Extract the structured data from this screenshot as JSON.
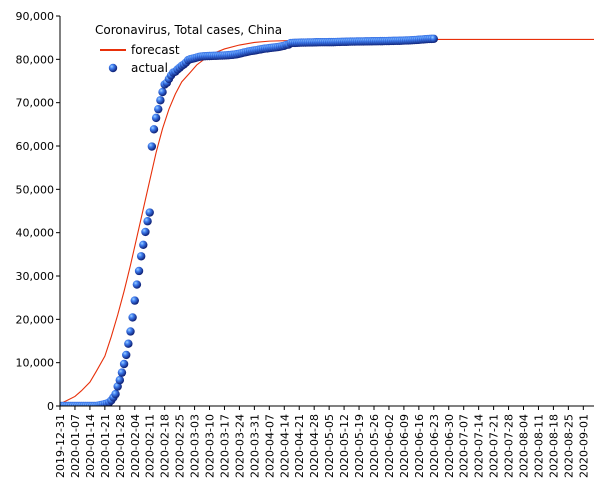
{
  "chart_data": {
    "type": "line",
    "title": "Coronavirus, Total cases, China",
    "xlabel": "",
    "ylabel": "",
    "ylim": [
      0,
      90000
    ],
    "xlim": [
      "2019-12-31",
      "2020-09-06"
    ],
    "grid": false,
    "legend_position": "top-left",
    "y_ticks": [
      "0",
      "10,000",
      "20,000",
      "30,000",
      "40,000",
      "50,000",
      "60,000",
      "70,000",
      "80,000",
      "90,000"
    ],
    "x_ticks": [
      "2019-12-31",
      "2020-01-07",
      "2020-01-14",
      "2020-01-21",
      "2020-01-28",
      "2020-02-04",
      "2020-02-11",
      "2020-02-18",
      "2020-02-25",
      "2020-03-03",
      "2020-03-10",
      "2020-03-17",
      "2020-03-24",
      "2020-03-31",
      "2020-04-07",
      "2020-04-14",
      "2020-04-21",
      "2020-04-28",
      "2020-05-05",
      "2020-05-12",
      "2020-05-19",
      "2020-05-26",
      "2020-06-02",
      "2020-06-09",
      "2020-06-16",
      "2020-06-23",
      "2020-06-30",
      "2020-07-07",
      "2020-07-14",
      "2020-07-21",
      "2020-07-28",
      "2020-08-04",
      "2020-08-11",
      "2020-08-18",
      "2020-08-25",
      "2020-09-01"
    ],
    "series": [
      {
        "name": "forecast",
        "color": "#e8300a",
        "style": "line",
        "points": [
          [
            "2019-12-31",
            500
          ],
          [
            "2020-01-03",
            1200
          ],
          [
            "2020-01-07",
            2200
          ],
          [
            "2020-01-10",
            3500
          ],
          [
            "2020-01-14",
            5500
          ],
          [
            "2020-01-17",
            8000
          ],
          [
            "2020-01-21",
            11500
          ],
          [
            "2020-01-24",
            16000
          ],
          [
            "2020-01-27",
            21000
          ],
          [
            "2020-01-30",
            26500
          ],
          [
            "2020-02-02",
            32500
          ],
          [
            "2020-02-05",
            39000
          ],
          [
            "2020-02-08",
            45500
          ],
          [
            "2020-02-11",
            52000
          ],
          [
            "2020-02-14",
            58500
          ],
          [
            "2020-02-17",
            64000
          ],
          [
            "2020-02-20",
            68500
          ],
          [
            "2020-02-23",
            72000
          ],
          [
            "2020-02-26",
            74800
          ],
          [
            "2020-03-01",
            77000
          ],
          [
            "2020-03-04",
            78700
          ],
          [
            "2020-03-08",
            80200
          ],
          [
            "2020-03-12",
            81400
          ],
          [
            "2020-03-17",
            82400
          ],
          [
            "2020-03-24",
            83300
          ],
          [
            "2020-03-31",
            83900
          ],
          [
            "2020-04-07",
            84200
          ],
          [
            "2020-04-21",
            84400
          ],
          [
            "2020-05-05",
            84500
          ],
          [
            "2020-06-02",
            84600
          ],
          [
            "2020-07-07",
            84600
          ],
          [
            "2020-08-11",
            84600
          ],
          [
            "2020-09-06",
            84600
          ]
        ]
      },
      {
        "name": "actual",
        "color": "#1a3fbf",
        "style": "markers",
        "points": [
          [
            "2019-12-31",
            0
          ],
          [
            "2020-01-01",
            0
          ],
          [
            "2020-01-02",
            0
          ],
          [
            "2020-01-03",
            0
          ],
          [
            "2020-01-04",
            0
          ],
          [
            "2020-01-05",
            0
          ],
          [
            "2020-01-06",
            0
          ],
          [
            "2020-01-07",
            0
          ],
          [
            "2020-01-08",
            0
          ],
          [
            "2020-01-09",
            0
          ],
          [
            "2020-01-10",
            0
          ],
          [
            "2020-01-11",
            0
          ],
          [
            "2020-01-12",
            0
          ],
          [
            "2020-01-13",
            0
          ],
          [
            "2020-01-14",
            0
          ],
          [
            "2020-01-15",
            0
          ],
          [
            "2020-01-16",
            0
          ],
          [
            "2020-01-17",
            0
          ],
          [
            "2020-01-18",
            100
          ],
          [
            "2020-01-19",
            200
          ],
          [
            "2020-01-20",
            300
          ],
          [
            "2020-01-21",
            440
          ],
          [
            "2020-01-22",
            570
          ],
          [
            "2020-01-23",
            830
          ],
          [
            "2020-01-24",
            1290
          ],
          [
            "2020-01-25",
            1980
          ],
          [
            "2020-01-26",
            2740
          ],
          [
            "2020-01-27",
            4500
          ],
          [
            "2020-01-28",
            5970
          ],
          [
            "2020-01-29",
            7700
          ],
          [
            "2020-01-30",
            9690
          ],
          [
            "2020-01-31",
            11790
          ],
          [
            "2020-02-01",
            14380
          ],
          [
            "2020-02-02",
            17200
          ],
          [
            "2020-02-03",
            20440
          ],
          [
            "2020-02-04",
            24320
          ],
          [
            "2020-02-05",
            28020
          ],
          [
            "2020-02-06",
            31160
          ],
          [
            "2020-02-07",
            34550
          ],
          [
            "2020-02-08",
            37200
          ],
          [
            "2020-02-09",
            40170
          ],
          [
            "2020-02-10",
            42640
          ],
          [
            "2020-02-11",
            44650
          ],
          [
            "2020-02-12",
            59880
          ],
          [
            "2020-02-13",
            63850
          ],
          [
            "2020-02-14",
            66490
          ],
          [
            "2020-02-15",
            68500
          ],
          [
            "2020-02-16",
            70550
          ],
          [
            "2020-02-17",
            72440
          ],
          [
            "2020-02-18",
            74190
          ],
          [
            "2020-02-19",
            74580
          ],
          [
            "2020-02-20",
            75470
          ],
          [
            "2020-02-21",
            76290
          ],
          [
            "2020-02-22",
            76940
          ],
          [
            "2020-02-23",
            77150
          ],
          [
            "2020-02-24",
            77660
          ],
          [
            "2020-02-25",
            78060
          ],
          [
            "2020-02-26",
            78500
          ],
          [
            "2020-02-27",
            78820
          ],
          [
            "2020-02-28",
            79250
          ],
          [
            "2020-02-29",
            79820
          ],
          [
            "2020-03-01",
            80030
          ],
          [
            "2020-03-02",
            80150
          ],
          [
            "2020-03-03",
            80270
          ],
          [
            "2020-03-04",
            80410
          ],
          [
            "2020-03-05",
            80550
          ],
          [
            "2020-03-06",
            80650
          ],
          [
            "2020-03-07",
            80700
          ],
          [
            "2020-03-08",
            80730
          ],
          [
            "2020-03-09",
            80750
          ],
          [
            "2020-03-10",
            80770
          ],
          [
            "2020-03-11",
            80790
          ],
          [
            "2020-03-12",
            80810
          ],
          [
            "2020-03-13",
            80820
          ],
          [
            "2020-03-14",
            80840
          ],
          [
            "2020-03-15",
            80860
          ],
          [
            "2020-03-16",
            80880
          ],
          [
            "2020-03-17",
            80900
          ],
          [
            "2020-03-18",
            80930
          ],
          [
            "2020-03-19",
            80970
          ],
          [
            "2020-03-20",
            81010
          ],
          [
            "2020-03-21",
            81060
          ],
          [
            "2020-03-22",
            81120
          ],
          [
            "2020-03-23",
            81200
          ],
          [
            "2020-03-24",
            81310
          ],
          [
            "2020-03-25",
            81420
          ],
          [
            "2020-03-26",
            81560
          ],
          [
            "2020-03-27",
            81650
          ],
          [
            "2020-03-28",
            81780
          ],
          [
            "2020-03-29",
            81890
          ],
          [
            "2020-03-30",
            81970
          ],
          [
            "2020-03-31",
            82040
          ],
          [
            "2020-04-01",
            82120
          ],
          [
            "2020-04-02",
            82220
          ],
          [
            "2020-04-03",
            82300
          ],
          [
            "2020-04-04",
            82410
          ],
          [
            "2020-04-05",
            82480
          ],
          [
            "2020-04-06",
            82520
          ],
          [
            "2020-04-07",
            82600
          ],
          [
            "2020-04-08",
            82660
          ],
          [
            "2020-04-09",
            82710
          ],
          [
            "2020-04-10",
            82770
          ],
          [
            "2020-04-11",
            82830
          ],
          [
            "2020-04-12",
            82930
          ],
          [
            "2020-04-13",
            83040
          ],
          [
            "2020-04-14",
            83130
          ],
          [
            "2020-04-15",
            83350
          ],
          [
            "2020-04-16",
            83400
          ],
          [
            "2020-04-17",
            83760
          ],
          [
            "2020-04-18",
            83780
          ],
          [
            "2020-04-19",
            83800
          ],
          [
            "2020-04-20",
            83820
          ],
          [
            "2020-04-21",
            83850
          ],
          [
            "2020-04-22",
            83860
          ],
          [
            "2020-04-23",
            83870
          ],
          [
            "2020-04-24",
            83880
          ],
          [
            "2020-04-25",
            83890
          ],
          [
            "2020-04-26",
            83900
          ],
          [
            "2020-04-27",
            83910
          ],
          [
            "2020-04-28",
            83920
          ],
          [
            "2020-04-29",
            83940
          ],
          [
            "2020-04-30",
            83950
          ],
          [
            "2020-05-01",
            83960
          ],
          [
            "2020-05-02",
            83960
          ],
          [
            "2020-05-03",
            83960
          ],
          [
            "2020-05-04",
            83960
          ],
          [
            "2020-05-05",
            83970
          ],
          [
            "2020-05-06",
            83970
          ],
          [
            "2020-05-07",
            83970
          ],
          [
            "2020-05-08",
            83990
          ],
          [
            "2020-05-09",
            84010
          ],
          [
            "2020-05-10",
            84020
          ],
          [
            "2020-05-11",
            84040
          ],
          [
            "2020-05-12",
            84050
          ],
          [
            "2020-05-13",
            84060
          ],
          [
            "2020-05-14",
            84080
          ],
          [
            "2020-05-15",
            84090
          ],
          [
            "2020-05-16",
            84100
          ],
          [
            "2020-05-17",
            84100
          ],
          [
            "2020-05-18",
            84120
          ],
          [
            "2020-05-19",
            84120
          ],
          [
            "2020-05-20",
            84130
          ],
          [
            "2020-05-21",
            84140
          ],
          [
            "2020-05-22",
            84150
          ],
          [
            "2020-05-23",
            84150
          ],
          [
            "2020-05-24",
            84160
          ],
          [
            "2020-05-25",
            84170
          ],
          [
            "2020-05-26",
            84180
          ],
          [
            "2020-05-27",
            84180
          ],
          [
            "2020-05-28",
            84190
          ],
          [
            "2020-05-29",
            84200
          ],
          [
            "2020-05-30",
            84200
          ],
          [
            "2020-05-31",
            84210
          ],
          [
            "2020-06-01",
            84220
          ],
          [
            "2020-06-02",
            84230
          ],
          [
            "2020-06-03",
            84240
          ],
          [
            "2020-06-04",
            84260
          ],
          [
            "2020-06-05",
            84270
          ],
          [
            "2020-06-06",
            84280
          ],
          [
            "2020-06-07",
            84290
          ],
          [
            "2020-06-08",
            84300
          ],
          [
            "2020-06-09",
            84330
          ],
          [
            "2020-06-10",
            84350
          ],
          [
            "2020-06-11",
            84370
          ],
          [
            "2020-06-12",
            84400
          ],
          [
            "2020-06-13",
            84420
          ],
          [
            "2020-06-14",
            84450
          ],
          [
            "2020-06-15",
            84480
          ],
          [
            "2020-06-16",
            84520
          ],
          [
            "2020-06-17",
            84560
          ],
          [
            "2020-06-18",
            84600
          ],
          [
            "2020-06-19",
            84640
          ],
          [
            "2020-06-20",
            84680
          ],
          [
            "2020-06-21",
            84700
          ],
          [
            "2020-06-22",
            84720
          ],
          [
            "2020-06-23",
            84740
          ]
        ]
      }
    ]
  }
}
